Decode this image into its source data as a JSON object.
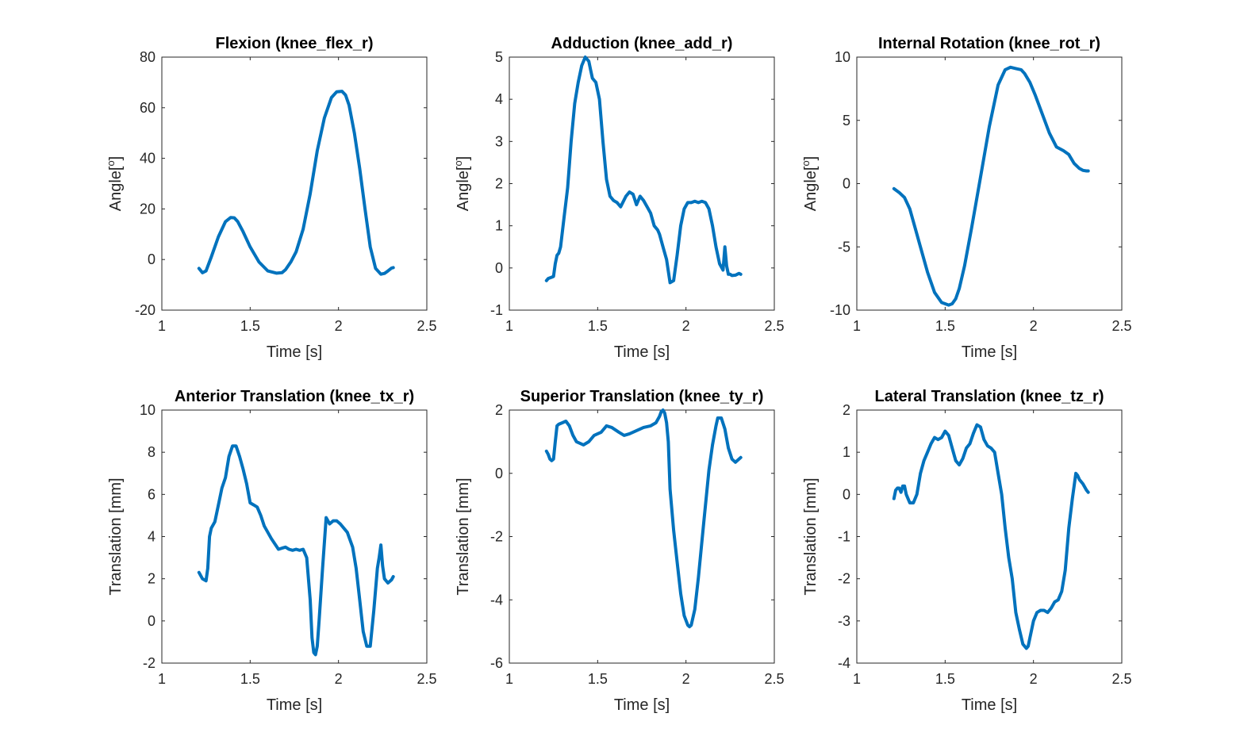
{
  "chart_data": [
    {
      "type": "line",
      "title": "Flexion (knee_flex_r)",
      "xlabel": "Time [s]",
      "ylabel": "Angle[",
      "ylabel_sup": "o",
      "ylabel_end": "]",
      "xlim": [
        1,
        2.5
      ],
      "ylim": [
        -20,
        80
      ],
      "xticks": [
        "1",
        "1.5",
        "2",
        "2.5"
      ],
      "yticks": [
        "-20",
        "0",
        "20",
        "40",
        "60",
        "80"
      ],
      "grid": false,
      "color": "#0072bd",
      "series": [
        {
          "x": [
            1.21,
            1.23,
            1.25,
            1.28,
            1.32,
            1.36,
            1.39,
            1.41,
            1.43,
            1.46,
            1.5,
            1.55,
            1.6,
            1.65,
            1.68,
            1.7,
            1.73,
            1.76,
            1.8,
            1.84,
            1.88,
            1.92,
            1.96,
            1.99,
            2.02,
            2.04,
            2.06,
            2.09,
            2.12,
            2.15,
            2.18,
            2.21,
            2.24,
            2.26,
            2.28,
            2.3,
            2.31
          ],
          "y": [
            -3.5,
            -5.2,
            -4.5,
            1,
            9,
            15,
            16.6,
            16.5,
            15,
            11,
            5,
            -1,
            -4.5,
            -5.4,
            -5.2,
            -4,
            -1,
            3,
            12,
            26,
            43,
            56,
            64,
            66.3,
            66.5,
            65,
            61,
            50,
            36,
            20,
            5,
            -3.5,
            -5.8,
            -5.5,
            -4.5,
            -3.4,
            -3.2
          ]
        }
      ]
    },
    {
      "type": "line",
      "title": "Adduction (knee_add_r)",
      "xlabel": "Time [s]",
      "ylabel": "Angle[",
      "ylabel_sup": "o",
      "ylabel_end": "]",
      "xlim": [
        1,
        2.5
      ],
      "ylim": [
        -1,
        5
      ],
      "xticks": [
        "1",
        "1.5",
        "2",
        "2.5"
      ],
      "yticks": [
        "-1",
        "0",
        "1",
        "2",
        "3",
        "4",
        "5"
      ],
      "grid": false,
      "color": "#0072bd",
      "series": [
        {
          "x": [
            1.21,
            1.22,
            1.24,
            1.25,
            1.26,
            1.27,
            1.28,
            1.29,
            1.31,
            1.33,
            1.35,
            1.37,
            1.39,
            1.41,
            1.43,
            1.45,
            1.46,
            1.47,
            1.49,
            1.51,
            1.53,
            1.55,
            1.57,
            1.59,
            1.61,
            1.63,
            1.66,
            1.68,
            1.7,
            1.72,
            1.74,
            1.76,
            1.78,
            1.8,
            1.82,
            1.83,
            1.84,
            1.85,
            1.87,
            1.89,
            1.91,
            1.93,
            1.95,
            1.97,
            1.99,
            2.01,
            2.03,
            2.05,
            2.07,
            2.09,
            2.11,
            2.13,
            2.15,
            2.17,
            2.19,
            2.21,
            2.22,
            2.23,
            2.24,
            2.25,
            2.26,
            2.28,
            2.3,
            2.31
          ],
          "y": [
            -0.3,
            -0.25,
            -0.22,
            -0.2,
            0.1,
            0.3,
            0.35,
            0.5,
            1.2,
            1.9,
            3.0,
            3.9,
            4.4,
            4.8,
            5.0,
            4.9,
            4.7,
            4.5,
            4.4,
            4.0,
            3.0,
            2.1,
            1.7,
            1.6,
            1.55,
            1.45,
            1.7,
            1.8,
            1.75,
            1.5,
            1.7,
            1.6,
            1.45,
            1.3,
            1.0,
            0.95,
            0.9,
            0.8,
            0.5,
            0.2,
            -0.35,
            -0.3,
            0.3,
            1.0,
            1.4,
            1.55,
            1.55,
            1.58,
            1.55,
            1.58,
            1.55,
            1.4,
            1.0,
            0.5,
            0.1,
            -0.05,
            0.5,
            0.05,
            -0.15,
            -0.15,
            -0.18,
            -0.17,
            -0.13,
            -0.15
          ]
        }
      ]
    },
    {
      "type": "line",
      "title": "Internal Rotation (knee_rot_r)",
      "xlabel": "Time [s]",
      "ylabel": "Angle[",
      "ylabel_sup": "o",
      "ylabel_end": "]",
      "xlim": [
        1,
        2.5
      ],
      "ylim": [
        -10,
        10
      ],
      "xticks": [
        "1",
        "1.5",
        "2",
        "2.5"
      ],
      "yticks": [
        "-10",
        "-5",
        "0",
        "5",
        "10"
      ],
      "grid": false,
      "color": "#0072bd",
      "series": [
        {
          "x": [
            1.21,
            1.24,
            1.27,
            1.3,
            1.33,
            1.36,
            1.4,
            1.44,
            1.48,
            1.52,
            1.54,
            1.56,
            1.58,
            1.61,
            1.65,
            1.7,
            1.75,
            1.8,
            1.84,
            1.87,
            1.9,
            1.93,
            1.95,
            1.98,
            2.01,
            2.05,
            2.09,
            2.13,
            2.17,
            2.2,
            2.23,
            2.26,
            2.28,
            2.3,
            2.31
          ],
          "y": [
            -0.4,
            -0.7,
            -1.1,
            -2.0,
            -3.5,
            -5.0,
            -7.0,
            -8.6,
            -9.4,
            -9.6,
            -9.5,
            -9.1,
            -8.3,
            -6.5,
            -3.5,
            0.5,
            4.5,
            7.8,
            9.0,
            9.2,
            9.1,
            9.0,
            8.7,
            8.0,
            7.0,
            5.5,
            4.0,
            2.9,
            2.6,
            2.3,
            1.6,
            1.2,
            1.05,
            1.0,
            1.0
          ]
        }
      ]
    },
    {
      "type": "line",
      "title": "Anterior Translation (knee_tx_r)",
      "xlabel": "Time [s]",
      "ylabel": "Translation [mm]",
      "xlim": [
        1,
        2.5
      ],
      "ylim": [
        -2,
        10
      ],
      "xticks": [
        "1",
        "1.5",
        "2",
        "2.5"
      ],
      "yticks": [
        "-2",
        "0",
        "2",
        "4",
        "6",
        "8",
        "10"
      ],
      "grid": false,
      "color": "#0072bd",
      "series": [
        {
          "x": [
            1.21,
            1.23,
            1.25,
            1.26,
            1.27,
            1.28,
            1.3,
            1.32,
            1.34,
            1.36,
            1.38,
            1.4,
            1.42,
            1.44,
            1.46,
            1.48,
            1.5,
            1.52,
            1.54,
            1.56,
            1.58,
            1.62,
            1.66,
            1.68,
            1.7,
            1.72,
            1.74,
            1.76,
            1.78,
            1.8,
            1.82,
            1.84,
            1.85,
            1.86,
            1.87,
            1.88,
            1.89,
            1.91,
            1.93,
            1.95,
            1.97,
            1.99,
            2.01,
            2.05,
            2.08,
            2.1,
            2.12,
            2.14,
            2.16,
            2.18,
            2.2,
            2.22,
            2.23,
            2.24,
            2.25,
            2.26,
            2.28,
            2.3,
            2.31
          ],
          "y": [
            2.3,
            2.0,
            1.9,
            2.5,
            4.0,
            4.4,
            4.7,
            5.5,
            6.3,
            6.8,
            7.8,
            8.3,
            8.3,
            7.8,
            7.2,
            6.5,
            5.6,
            5.5,
            5.4,
            5.0,
            4.5,
            3.9,
            3.4,
            3.45,
            3.5,
            3.4,
            3.35,
            3.4,
            3.35,
            3.4,
            3.0,
            1.0,
            -0.8,
            -1.5,
            -1.6,
            -1.2,
            0.0,
            2.5,
            4.9,
            4.6,
            4.75,
            4.75,
            4.6,
            4.2,
            3.5,
            2.5,
            1.0,
            -0.5,
            -1.2,
            -1.2,
            0.5,
            2.5,
            3.0,
            3.6,
            2.6,
            2.0,
            1.8,
            1.95,
            2.1
          ]
        }
      ]
    },
    {
      "type": "line",
      "title": "Superior Translation (knee_ty_r)",
      "xlabel": "Time [s]",
      "ylabel": "Translation [mm]",
      "xlim": [
        1,
        2.5
      ],
      "ylim": [
        -6,
        2
      ],
      "xticks": [
        "1",
        "1.5",
        "2",
        "2.5"
      ],
      "yticks": [
        "-6",
        "-4",
        "-2",
        "0",
        "2"
      ],
      "grid": false,
      "color": "#0072bd",
      "series": [
        {
          "x": [
            1.21,
            1.22,
            1.23,
            1.24,
            1.25,
            1.26,
            1.27,
            1.28,
            1.3,
            1.32,
            1.34,
            1.36,
            1.38,
            1.4,
            1.42,
            1.45,
            1.48,
            1.5,
            1.52,
            1.55,
            1.58,
            1.62,
            1.65,
            1.68,
            1.72,
            1.76,
            1.8,
            1.83,
            1.85,
            1.86,
            1.87,
            1.88,
            1.89,
            1.9,
            1.91,
            1.93,
            1.95,
            1.97,
            1.99,
            2.01,
            2.02,
            2.03,
            2.05,
            2.07,
            2.1,
            2.13,
            2.15,
            2.17,
            2.18,
            2.2,
            2.22,
            2.24,
            2.26,
            2.28,
            2.3,
            2.31
          ],
          "y": [
            0.7,
            0.6,
            0.45,
            0.4,
            0.45,
            1.0,
            1.5,
            1.55,
            1.6,
            1.65,
            1.5,
            1.2,
            1.0,
            0.95,
            0.9,
            1.0,
            1.2,
            1.25,
            1.3,
            1.5,
            1.45,
            1.3,
            1.2,
            1.25,
            1.35,
            1.45,
            1.5,
            1.6,
            1.8,
            1.95,
            2.0,
            1.9,
            1.6,
            1.0,
            -0.5,
            -1.8,
            -2.8,
            -3.8,
            -4.5,
            -4.8,
            -4.85,
            -4.8,
            -4.3,
            -3.3,
            -1.6,
            0.1,
            0.9,
            1.5,
            1.75,
            1.75,
            1.4,
            0.8,
            0.45,
            0.35,
            0.45,
            0.5
          ]
        }
      ]
    },
    {
      "type": "line",
      "title": "Lateral Translation (knee_tz_r)",
      "xlabel": "Time [s]",
      "ylabel": "Translation [mm]",
      "xlim": [
        1,
        2.5
      ],
      "ylim": [
        -4,
        2
      ],
      "xticks": [
        "1",
        "1.5",
        "2",
        "2.5"
      ],
      "yticks": [
        "-4",
        "-3",
        "-2",
        "-1",
        "0",
        "1",
        "2"
      ],
      "grid": false,
      "color": "#0072bd",
      "series": [
        {
          "x": [
            1.21,
            1.22,
            1.23,
            1.24,
            1.25,
            1.26,
            1.27,
            1.28,
            1.3,
            1.32,
            1.34,
            1.36,
            1.38,
            1.4,
            1.42,
            1.44,
            1.46,
            1.48,
            1.5,
            1.52,
            1.54,
            1.56,
            1.58,
            1.6,
            1.62,
            1.64,
            1.66,
            1.68,
            1.7,
            1.72,
            1.74,
            1.76,
            1.78,
            1.8,
            1.82,
            1.84,
            1.86,
            1.88,
            1.9,
            1.92,
            1.94,
            1.96,
            1.97,
            1.98,
            2.0,
            2.02,
            2.04,
            2.06,
            2.08,
            2.1,
            2.12,
            2.14,
            2.16,
            2.18,
            2.2,
            2.22,
            2.24,
            2.25,
            2.26,
            2.28,
            2.3,
            2.31
          ],
          "y": [
            -0.1,
            0.1,
            0.15,
            0.15,
            0.05,
            0.2,
            0.2,
            0.0,
            -0.2,
            -0.2,
            0.0,
            0.5,
            0.8,
            1.0,
            1.2,
            1.35,
            1.3,
            1.35,
            1.5,
            1.4,
            1.1,
            0.8,
            0.7,
            0.85,
            1.1,
            1.2,
            1.45,
            1.65,
            1.6,
            1.3,
            1.15,
            1.1,
            1.0,
            0.5,
            0.0,
            -0.8,
            -1.5,
            -2.0,
            -2.8,
            -3.2,
            -3.55,
            -3.65,
            -3.6,
            -3.4,
            -3.0,
            -2.8,
            -2.75,
            -2.75,
            -2.8,
            -2.7,
            -2.55,
            -2.5,
            -2.3,
            -1.8,
            -0.8,
            -0.1,
            0.5,
            0.45,
            0.35,
            0.25,
            0.1,
            0.05
          ]
        }
      ]
    }
  ]
}
